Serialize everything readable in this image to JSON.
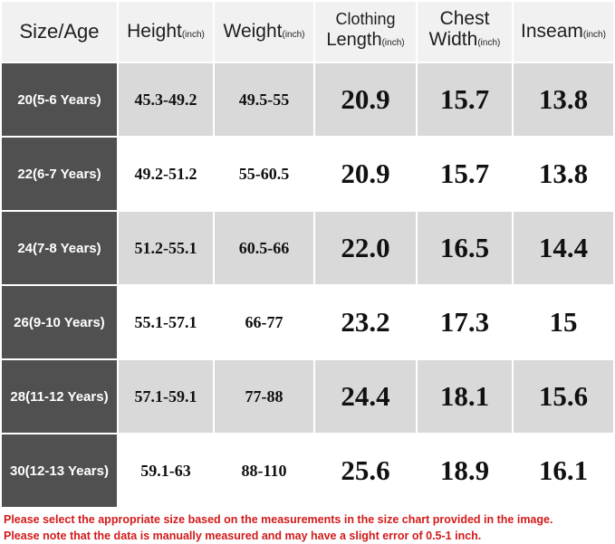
{
  "headers": {
    "size_age": "Size/Age",
    "height": {
      "label": "Height",
      "unit": "(inch)"
    },
    "weight": {
      "label": "Weight",
      "unit": "(inch)"
    },
    "clothing_length": {
      "line1": "Clothing",
      "line2": "Length",
      "unit": "(inch)"
    },
    "chest_width": {
      "line1": "Chest",
      "line2": "Width",
      "unit": "(inch)"
    },
    "inseam": {
      "label": "Inseam",
      "unit": "(inch)"
    }
  },
  "rows": [
    {
      "size": "20(5-6 Years)",
      "height": "45.3-49.2",
      "weight": "49.5-55",
      "clothing_length": "20.9",
      "chest_width": "15.7",
      "inseam": "13.8"
    },
    {
      "size": "22(6-7 Years)",
      "height": "49.2-51.2",
      "weight": "55-60.5",
      "clothing_length": "20.9",
      "chest_width": "15.7",
      "inseam": "13.8"
    },
    {
      "size": "24(7-8 Years)",
      "height": "51.2-55.1",
      "weight": "60.5-66",
      "clothing_length": "22.0",
      "chest_width": "16.5",
      "inseam": "14.4"
    },
    {
      "size": "26(9-10 Years)",
      "height": "55.1-57.1",
      "weight": "66-77",
      "clothing_length": "23.2",
      "chest_width": "17.3",
      "inseam": "15"
    },
    {
      "size": "28(11-12 Years)",
      "height": "57.1-59.1",
      "weight": "77-88",
      "clothing_length": "24.4",
      "chest_width": "18.1",
      "inseam": "15.6"
    },
    {
      "size": "30(12-13 Years)",
      "height": "59.1-63",
      "weight": "88-110",
      "clothing_length": "25.6",
      "chest_width": "18.9",
      "inseam": "16.1"
    }
  ],
  "notes": {
    "line1": "Please select the appropriate size based on the measurements in the size chart provided in the image.",
    "line2": "Please note that the data is manually measured and may have a slight error of 0.5-1 inch."
  },
  "colors": {
    "age_column": "#505050",
    "row_gray": "#d9d9d9",
    "header": "#f1f1f1",
    "note_text": "#d21a1a"
  }
}
